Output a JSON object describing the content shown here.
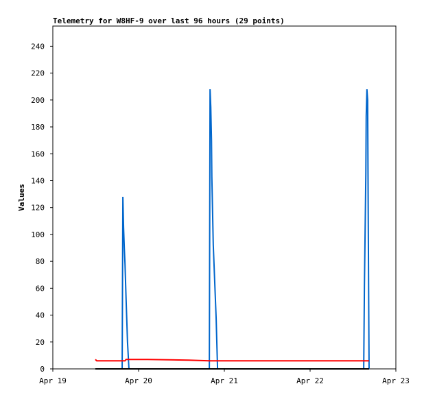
{
  "chart_data": {
    "type": "line",
    "title": "Telemetry for W8HF-9 over last 96 hours (29 points)",
    "ylabel": "Values",
    "x": [
      11.9,
      12.3,
      19.4,
      19.6,
      19.8,
      20.0,
      20.2,
      20.5,
      20.9,
      21.3,
      26.5,
      38.0,
      43.8,
      44.0,
      44.2,
      44.4,
      44.5,
      44.9,
      45.3,
      45.7,
      46.1,
      87.0,
      87.2,
      87.6,
      87.7,
      87.9,
      88.1,
      88.3,
      88.5
    ],
    "series": [
      {
        "color": "#0066cc",
        "values": [
          0,
          0,
          0,
          128,
          105,
          90,
          78,
          52,
          20,
          0,
          0,
          0,
          0,
          208,
          195,
          170,
          143,
          92,
          65,
          38,
          0,
          0,
          62,
          145,
          188,
          208,
          200,
          96,
          0
        ]
      },
      {
        "color": "#ff0000",
        "values": [
          7,
          6,
          6,
          6,
          6,
          6,
          6,
          7,
          7,
          7,
          7,
          6.5,
          6,
          6,
          6,
          6,
          6,
          6,
          6,
          6,
          6,
          6,
          6,
          6,
          6,
          6,
          6,
          6,
          6
        ]
      },
      {
        "color": "#000000",
        "values": [
          0,
          0,
          0,
          0,
          0,
          0,
          0,
          0,
          0,
          0,
          0,
          0,
          0,
          0,
          0,
          0,
          0,
          0,
          0,
          0,
          0,
          0,
          0,
          0,
          0,
          0,
          0,
          0,
          0
        ]
      }
    ],
    "xlim": [
      0,
      96
    ],
    "xticks": [
      {
        "value": 0,
        "label": "Apr 19"
      },
      {
        "value": 24,
        "label": "Apr 20"
      },
      {
        "value": 48,
        "label": "Apr 21"
      },
      {
        "value": 72,
        "label": "Apr 22"
      },
      {
        "value": 96,
        "label": "Apr 23"
      }
    ],
    "ylim": [
      0,
      255
    ],
    "yticks": [
      0,
      20,
      40,
      60,
      80,
      100,
      120,
      140,
      160,
      180,
      200,
      220,
      240
    ]
  }
}
